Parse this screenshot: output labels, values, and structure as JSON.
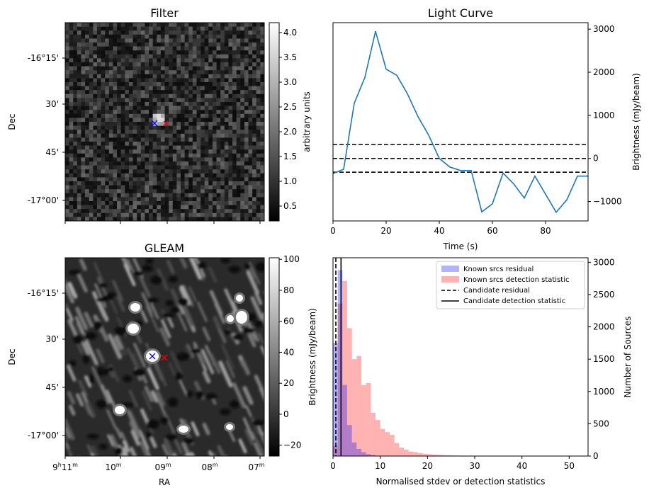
{
  "chart_data": [
    {
      "type": "heatmap",
      "title": "Filter",
      "xlabel": "",
      "ylabel": "Dec",
      "y_tick_labels": [
        "-16°15'",
        "30'",
        "45'",
        "-17°00'"
      ],
      "colorbar": {
        "label": "arbitrary units",
        "range": [
          0.2,
          4.2
        ],
        "tick_labels": [
          "0.5",
          "1.0",
          "1.5",
          "2.0",
          "2.5",
          "3.0",
          "3.5",
          "4.0"
        ],
        "colormap": "gray"
      },
      "markers": [
        {
          "symbol": "x",
          "color": "#0000ff"
        },
        {
          "symbol": "x",
          "color": "#ff0000"
        }
      ]
    },
    {
      "type": "line",
      "title": "Light Curve",
      "xlabel": "Time (s)",
      "ylabel": "Brightness (mJy/beam)",
      "xlim": [
        0,
        96
      ],
      "ylim": [
        -1450,
        3150
      ],
      "x_ticks": [
        0,
        20,
        40,
        60,
        80
      ],
      "y_ticks": [
        -1000,
        0,
        1000,
        2000,
        3000
      ],
      "x_tick_labels": [
        "0",
        "20",
        "40",
        "60",
        "80"
      ],
      "y_tick_labels": [
        "−1000",
        "0",
        "1000",
        "2000",
        "3000"
      ],
      "series": [
        {
          "color": "#1f77b4",
          "x": [
            0,
            4,
            8,
            12,
            16,
            20,
            24,
            28,
            32,
            36,
            40,
            44,
            48,
            52,
            56,
            60,
            64,
            68,
            72,
            76,
            80,
            84,
            88,
            92,
            96
          ],
          "values": [
            -350,
            -250,
            1280,
            1880,
            2950,
            2070,
            1930,
            1500,
            970,
            540,
            0,
            -200,
            -280,
            -280,
            -1240,
            -1050,
            -340,
            -590,
            -920,
            -410,
            -830,
            -1250,
            -960,
            -410,
            -410
          ]
        }
      ],
      "hlines": [
        {
          "y": 320,
          "style": "dashed",
          "color": "#000000"
        },
        {
          "y": 0,
          "style": "dashed",
          "color": "#000000"
        },
        {
          "y": -320,
          "style": "dashed",
          "color": "#000000"
        }
      ]
    },
    {
      "type": "heatmap",
      "title": "GLEAM",
      "xlabel": "RA",
      "ylabel": "Dec",
      "x_tick_labels": [
        "9h11m",
        "10m",
        "09m",
        "08m",
        "07m"
      ],
      "y_tick_labels": [
        "-16°15'",
        "30'",
        "45'",
        "-17°00'"
      ],
      "colorbar": {
        "label": "Brightness (mJy/beam)",
        "range": [
          -27,
          101
        ],
        "tick_labels": [
          "−20",
          "0",
          "20",
          "40",
          "60",
          "80",
          "100"
        ],
        "colormap": "gray"
      },
      "markers": [
        {
          "symbol": "x",
          "color": "#0000ff"
        },
        {
          "symbol": "x",
          "color": "#ff0000"
        }
      ]
    },
    {
      "type": "bar",
      "title": "",
      "xlabel": "Normalised stdev or detection statistics",
      "ylabel": "Number of Sources",
      "xlim": [
        0,
        54
      ],
      "ylim": [
        0,
        3070
      ],
      "x_ticks": [
        0,
        10,
        20,
        30,
        40,
        50
      ],
      "y_ticks": [
        0,
        500,
        1000,
        1500,
        2000,
        2500,
        3000
      ],
      "x_tick_labels": [
        "0",
        "10",
        "20",
        "30",
        "40",
        "50"
      ],
      "y_tick_labels": [
        "0",
        "500",
        "1000",
        "1500",
        "2000",
        "2500",
        "3000"
      ],
      "bin_width": 1,
      "series": [
        {
          "name": "Known srcs residual",
          "color": "#0000ff",
          "alpha": 0.3,
          "bin_starts": [
            0,
            1,
            2,
            3,
            4,
            5,
            6,
            7,
            8
          ],
          "values": [
            1750,
            2880,
            1100,
            480,
            210,
            110,
            60,
            30,
            15
          ]
        },
        {
          "name": "Known srcs detection statistic",
          "color": "#ff0000",
          "alpha": 0.3,
          "bin_starts": [
            0,
            1,
            2,
            3,
            4,
            5,
            6,
            7,
            8,
            9,
            10,
            11,
            12,
            13,
            14,
            15,
            16,
            17,
            18,
            19,
            20,
            21,
            22,
            23,
            24,
            25,
            26,
            27,
            28,
            29,
            30,
            31,
            32,
            33,
            34,
            35,
            36,
            37,
            38,
            39,
            40,
            41,
            42,
            43,
            44,
            45,
            46,
            47,
            48,
            49,
            50,
            51,
            52,
            53
          ],
          "values": [
            160,
            2360,
            2710,
            1980,
            1500,
            1550,
            1100,
            1130,
            670,
            560,
            420,
            370,
            330,
            200,
            130,
            100,
            70,
            60,
            45,
            35,
            28,
            22,
            18,
            14,
            12,
            10,
            8,
            7,
            6,
            5,
            5,
            4,
            3,
            3,
            3,
            2,
            2,
            2,
            2,
            2,
            2,
            1,
            1,
            1,
            1,
            1,
            1,
            1,
            1,
            1,
            1,
            1,
            1,
            1
          ]
        }
      ],
      "vlines": [
        {
          "name": "Candidate residual",
          "x": 0.6,
          "style": "dashed",
          "color": "#000000"
        },
        {
          "name": "Candidate detection statistic",
          "x": 1.7,
          "style": "solid",
          "color": "#000000"
        }
      ],
      "legend": "top-right"
    }
  ],
  "cmap_gray_hex": "#000000"
}
